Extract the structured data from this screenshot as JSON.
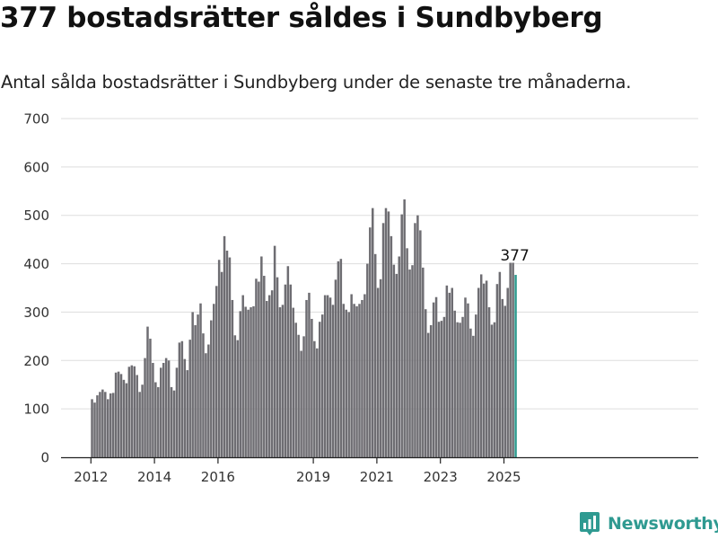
{
  "title": "377 bostadsrätter såldes i Sundbyberg",
  "subtitle": "Antal sålda bostadsrätter i Sundbyberg under de senaste tre månaderna.",
  "brand": {
    "name": "Newsworthy",
    "color": "#2f9a91",
    "icon": "newsworthy-logo-icon"
  },
  "colors": {
    "bar": "#6e6d72",
    "highlight": "#2e9b8f",
    "grid": "#dddddd",
    "text": "#333333"
  },
  "chart_data": {
    "type": "bar",
    "x_unit": "month",
    "x_start": "2012-01",
    "ylim": [
      0,
      700
    ],
    "yticks": [
      0,
      100,
      200,
      300,
      400,
      500,
      600,
      700
    ],
    "xticks": [
      "2012",
      "2014",
      "2016",
      "2019",
      "2021",
      "2023",
      "2025"
    ],
    "xlabel": "",
    "ylabel": "",
    "grid": true,
    "highlight_label": "377",
    "values": [
      120,
      113,
      128,
      135,
      140,
      135,
      120,
      132,
      133,
      175,
      177,
      172,
      160,
      153,
      187,
      190,
      188,
      170,
      135,
      150,
      205,
      270,
      245,
      195,
      155,
      145,
      185,
      195,
      205,
      200,
      145,
      138,
      185,
      237,
      240,
      203,
      180,
      243,
      300,
      273,
      295,
      318,
      256,
      215,
      233,
      283,
      317,
      354,
      408,
      383,
      457,
      427,
      413,
      325,
      252,
      242,
      302,
      335,
      311,
      305,
      310,
      312,
      369,
      363,
      415,
      375,
      323,
      335,
      345,
      437,
      372,
      310,
      315,
      357,
      395,
      357,
      309,
      278,
      253,
      220,
      250,
      325,
      340,
      286,
      240,
      225,
      280,
      295,
      335,
      335,
      330,
      315,
      367,
      405,
      410,
      317,
      305,
      300,
      337,
      317,
      312,
      317,
      325,
      337,
      400,
      475,
      515,
      420,
      350,
      368,
      484,
      515,
      508,
      457,
      398,
      379,
      415,
      502,
      533,
      432,
      388,
      397,
      484,
      500,
      469,
      392,
      306,
      257,
      273,
      320,
      331,
      280,
      282,
      290,
      355,
      340,
      350,
      303,
      279,
      278,
      290,
      330,
      318,
      266,
      251,
      295,
      350,
      378,
      359,
      365,
      310,
      274,
      279,
      358,
      383,
      327,
      313,
      350,
      402,
      402,
      377
    ]
  }
}
